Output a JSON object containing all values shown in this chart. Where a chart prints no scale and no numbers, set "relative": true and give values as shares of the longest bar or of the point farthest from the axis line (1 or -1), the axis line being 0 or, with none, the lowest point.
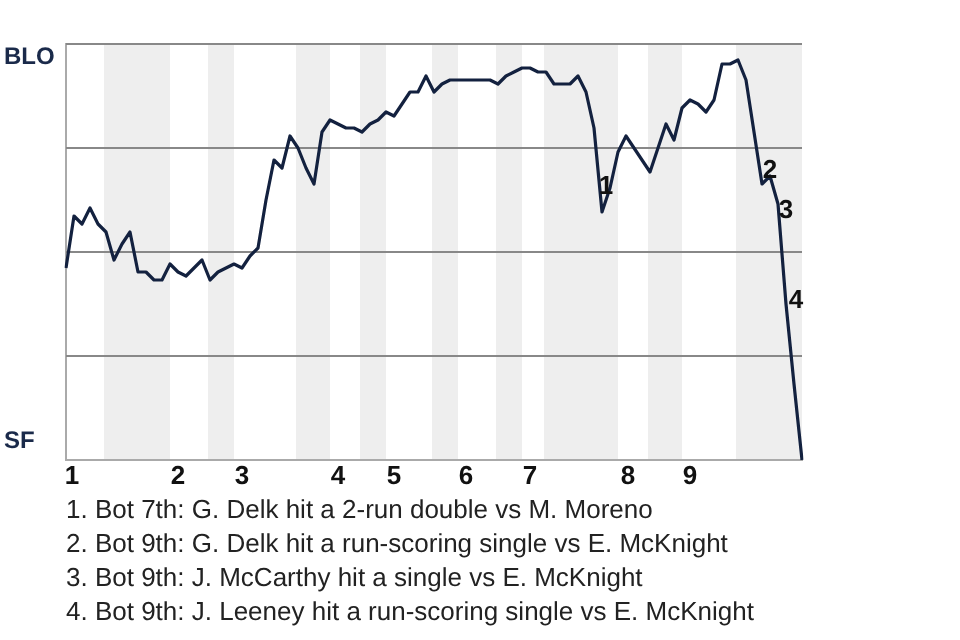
{
  "chart_data": {
    "type": "line",
    "relative": true,
    "categories": [
      null,
      null,
      null,
      null,
      null,
      null,
      null,
      null,
      null,
      null,
      null,
      null,
      null,
      null,
      null,
      null,
      null,
      null,
      null,
      null,
      null,
      null,
      null,
      null,
      null,
      null,
      null,
      null,
      null,
      null,
      null,
      null,
      null,
      null,
      null,
      null,
      null,
      null,
      null,
      null,
      null,
      null,
      null,
      null,
      null,
      null,
      null,
      null,
      null,
      null,
      null,
      null,
      null,
      null,
      null,
      null,
      null,
      null,
      null,
      null,
      null,
      null,
      null,
      null,
      null,
      null,
      null,
      null,
      null,
      null,
      null,
      null,
      null,
      null,
      null,
      null,
      null,
      null,
      null,
      null,
      null,
      null,
      null,
      null,
      null,
      null,
      null,
      null,
      null,
      null,
      null,
      null,
      null
    ],
    "series": [
      {
        "color": "#13213f",
        "values": [
          0.48,
          0.61,
          0.59,
          0.63,
          0.59,
          0.57,
          0.5,
          0.54,
          0.57,
          0.47,
          0.47,
          0.45,
          0.45,
          0.49,
          0.47,
          0.46,
          0.48,
          0.5,
          0.45,
          0.47,
          0.48,
          0.49,
          0.48,
          0.51,
          0.53,
          0.65,
          0.75,
          0.73,
          0.81,
          0.78,
          0.73,
          0.69,
          0.82,
          0.85,
          0.84,
          0.83,
          0.83,
          0.82,
          0.84,
          0.85,
          0.87,
          0.86,
          0.89,
          0.92,
          0.92,
          0.96,
          0.92,
          0.94,
          0.95,
          0.95,
          0.95,
          0.95,
          0.95,
          0.95,
          0.94,
          0.96,
          0.97,
          0.98,
          0.98,
          0.97,
          0.97,
          0.94,
          0.94,
          0.94,
          0.96,
          0.92,
          0.83,
          0.62,
          0.68,
          0.77,
          0.81,
          0.78,
          0.75,
          0.72,
          0.78,
          0.84,
          0.8,
          0.88,
          0.9,
          0.89,
          0.87,
          0.9,
          0.99,
          0.99,
          1,
          0.95,
          0.82,
          0.69,
          0.71,
          0.64,
          0.39,
          0.19,
          0
        ]
      }
    ],
    "ref_lines": [
      {
        "axis": "y",
        "value": 0.26,
        "color": "#888888"
      },
      {
        "axis": "y",
        "value": 0.52,
        "color": "#888888"
      },
      {
        "axis": "y",
        "value": 0.78,
        "color": "#888888"
      },
      {
        "axis": "y",
        "value": 1.04,
        "color": "#888888"
      }
    ],
    "marker": "none",
    "annotations": [
      "1",
      "2",
      "3",
      "4",
      "BLO",
      "SF",
      "1",
      "2",
      "3",
      "4",
      "5",
      "6",
      "7",
      "8",
      "9",
      "1. Bot 7th: G. Delk hit a 2-run double vs M. Moreno",
      "2. Bot 9th: G. Delk hit a run-scoring single vs E. McKnight",
      "3. Bot 9th: J. McCarthy hit a single vs E. McKnight",
      "4. Bot 9th: J. Leeney hit a run-scoring single vs E. McKnight"
    ]
  }
}
